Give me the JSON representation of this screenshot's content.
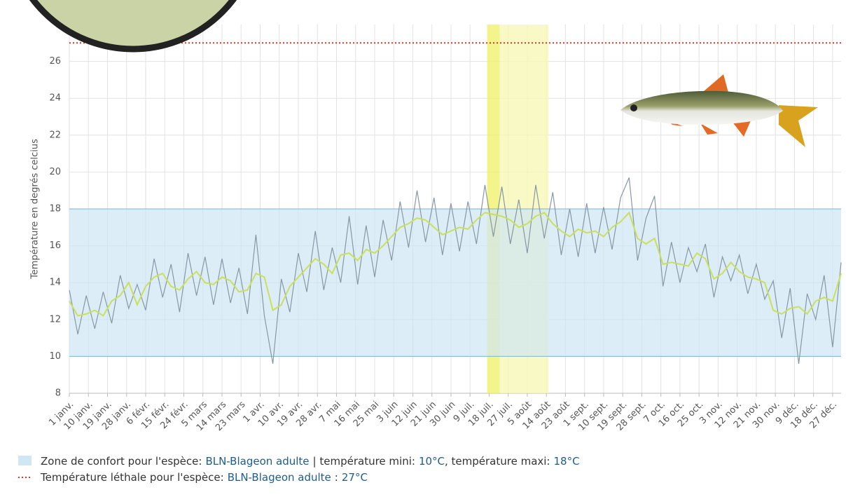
{
  "chart_data": {
    "type": "line",
    "y_label": "Température en degrés celcius",
    "x": [
      1,
      5,
      9,
      13,
      17,
      21,
      25,
      29,
      33,
      37,
      41,
      45,
      49,
      53,
      57,
      61,
      65,
      69,
      73,
      77,
      81,
      85,
      89,
      93,
      97,
      101,
      105,
      109,
      113,
      117,
      121,
      125,
      129,
      133,
      137,
      141,
      145,
      149,
      153,
      157,
      161,
      165,
      169,
      173,
      177,
      181,
      185,
      189,
      193,
      197,
      201,
      205,
      209,
      213,
      217,
      221,
      225,
      229,
      233,
      237,
      241,
      245,
      249,
      253,
      257,
      261,
      265,
      269,
      273,
      277,
      281,
      285,
      289,
      293,
      297,
      301,
      305,
      309,
      313,
      317,
      321,
      325,
      329,
      333,
      337,
      341,
      345,
      349,
      353,
      357,
      361,
      365
    ],
    "series": [
      {
        "color": "#8797a6",
        "values": [
          13.6,
          11.2,
          13.3,
          11.5,
          13.5,
          11.8,
          14.4,
          12.6,
          13.9,
          12.5,
          15.3,
          13.2,
          15.0,
          12.4,
          15.6,
          13.3,
          15.4,
          12.8,
          15.3,
          12.9,
          14.8,
          12.3,
          16.6,
          12.2,
          9.6,
          14.2,
          12.4,
          15.6,
          13.5,
          16.8,
          13.6,
          15.9,
          14.0,
          17.6,
          13.9,
          17.1,
          14.3,
          17.4,
          15.2,
          18.4,
          15.9,
          19.0,
          16.2,
          18.6,
          15.5,
          18.3,
          15.7,
          18.4,
          16.1,
          19.3,
          16.5,
          19.2,
          16.1,
          18.5,
          15.6,
          19.3,
          16.4,
          18.9,
          15.5,
          18.0,
          15.4,
          18.3,
          15.6,
          18.1,
          15.8,
          18.6,
          19.7,
          15.2,
          17.5,
          18.7,
          13.8,
          16.2,
          14.0,
          15.9,
          14.6,
          16.1,
          13.2,
          15.4,
          14.1,
          15.5,
          13.4,
          15.0,
          13.1,
          14.1,
          11.0,
          13.7,
          9.6,
          13.4,
          12.0,
          14.4,
          10.5,
          15.1
        ]
      },
      {
        "color": "#c8e05c",
        "values": [
          13.0,
          12.2,
          12.3,
          12.5,
          12.2,
          13.0,
          13.3,
          14.0,
          12.8,
          13.8,
          14.3,
          14.5,
          13.8,
          13.6,
          14.2,
          14.6,
          14.0,
          13.9,
          14.3,
          14.1,
          13.5,
          13.6,
          14.5,
          14.3,
          12.5,
          12.8,
          13.8,
          14.3,
          14.8,
          15.3,
          15.0,
          14.5,
          15.5,
          15.6,
          15.2,
          15.8,
          15.6,
          16.0,
          16.5,
          17.0,
          17.2,
          17.5,
          17.4,
          17.0,
          16.6,
          16.8,
          17.0,
          16.9,
          17.4,
          17.8,
          17.7,
          17.6,
          17.4,
          17.0,
          17.2,
          17.6,
          17.8,
          17.2,
          16.8,
          16.5,
          16.9,
          16.7,
          16.8,
          16.5,
          17.0,
          17.3,
          17.8,
          16.4,
          16.1,
          16.4,
          15.0,
          15.1,
          15.0,
          14.9,
          15.6,
          15.3,
          14.2,
          14.5,
          15.1,
          14.6,
          14.3,
          14.2,
          14.0,
          12.5,
          12.3,
          12.6,
          12.7,
          12.3,
          13.0,
          13.2,
          13.0,
          14.5
        ]
      }
    ],
    "xlim": [
      1,
      365
    ],
    "xticks": [
      {
        "value": 1,
        "label": "1 janv."
      },
      {
        "value": 10,
        "label": "10 janv."
      },
      {
        "value": 19,
        "label": "19 janv."
      },
      {
        "value": 28,
        "label": "28 janv."
      },
      {
        "value": 37,
        "label": "6 févr."
      },
      {
        "value": 46,
        "label": "15 févr."
      },
      {
        "value": 55,
        "label": "24 févr."
      },
      {
        "value": 64,
        "label": "5 mars"
      },
      {
        "value": 73,
        "label": "14 mars"
      },
      {
        "value": 82,
        "label": "23 mars"
      },
      {
        "value": 91,
        "label": "1 avr."
      },
      {
        "value": 100,
        "label": "10 avr."
      },
      {
        "value": 109,
        "label": "19 avr."
      },
      {
        "value": 118,
        "label": "28 avr."
      },
      {
        "value": 127,
        "label": "7 mai"
      },
      {
        "value": 136,
        "label": "16 mai"
      },
      {
        "value": 145,
        "label": "25 mai"
      },
      {
        "value": 154,
        "label": "3 juin"
      },
      {
        "value": 163,
        "label": "12 juin"
      },
      {
        "value": 172,
        "label": "21 juin"
      },
      {
        "value": 181,
        "label": "30 juin"
      },
      {
        "value": 190,
        "label": "9 juil."
      },
      {
        "value": 199,
        "label": "18 juil."
      },
      {
        "value": 208,
        "label": "27 juil."
      },
      {
        "value": 217,
        "label": "5 août"
      },
      {
        "value": 226,
        "label": "14 août"
      },
      {
        "value": 235,
        "label": "23 août"
      },
      {
        "value": 244,
        "label": "1 sept."
      },
      {
        "value": 253,
        "label": "10 sept."
      },
      {
        "value": 262,
        "label": "19 sept."
      },
      {
        "value": 271,
        "label": "28 sept."
      },
      {
        "value": 280,
        "label": "7 oct."
      },
      {
        "value": 289,
        "label": "16 oct."
      },
      {
        "value": 298,
        "label": "25 oct."
      },
      {
        "value": 307,
        "label": "3 nov."
      },
      {
        "value": 316,
        "label": "12 nov."
      },
      {
        "value": 325,
        "label": "21 nov."
      },
      {
        "value": 334,
        "label": "30 nov."
      },
      {
        "value": 343,
        "label": "9 déc."
      },
      {
        "value": 352,
        "label": "18 déc."
      },
      {
        "value": 361,
        "label": "27 déc."
      }
    ],
    "ylim": [
      8,
      28
    ],
    "yticks": [
      8,
      10,
      12,
      14,
      16,
      18,
      20,
      22,
      24,
      26
    ],
    "grid": true,
    "highlights": [
      {
        "xlim": [
          198,
          204
        ],
        "color": "#f0f26e"
      },
      {
        "xlim": [
          204,
          227
        ],
        "color": "#f7f8b8"
      }
    ],
    "comfort_zone": {
      "min": 10,
      "max": 18,
      "min_label": "10°C",
      "max_label": "18°C",
      "color": "#cfe6f3"
    },
    "lethal": {
      "value": 27,
      "label": "27°C",
      "color": "#d9352b"
    },
    "legend": {
      "comfort_text": "Zone de confort pour l'espèce:",
      "comfort_species": "BLN-Blageon adulte",
      "min_text": "| température mini:",
      "max_text": ", température maxi:",
      "lethal_text": "Température léthale pour l'espèce:",
      "lethal_species": "BLN-Blageon adulte",
      "lethal_sep": ":"
    }
  }
}
